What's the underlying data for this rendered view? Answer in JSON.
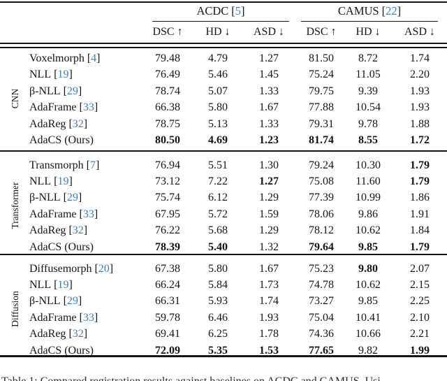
{
  "colors": {
    "text": "#141414",
    "cite_blue": "#3d7dc4",
    "background": "#ffffff"
  },
  "brackets": {
    "open": "[",
    "close": "]"
  },
  "table": {
    "dataset_headers": [
      {
        "label": "ACDC",
        "cite": "5"
      },
      {
        "label": "CAMUS",
        "cite": "22"
      }
    ],
    "metric_headers": [
      {
        "label": "DSC",
        "arrow": "↑"
      },
      {
        "label": "HD",
        "arrow": "↓"
      },
      {
        "label": "ASD",
        "arrow": "↓"
      },
      {
        "label": "DSC",
        "arrow": "↑"
      },
      {
        "label": "HD",
        "arrow": "↓"
      },
      {
        "label": "ASD",
        "arrow": "↓"
      }
    ],
    "groups": [
      {
        "name": "CNN",
        "rows": [
          {
            "method": "Voxelmorph",
            "cite": "4",
            "values": [
              "79.48",
              "4.79",
              "1.27",
              "81.50",
              "8.72",
              "1.74"
            ],
            "bold": [
              0,
              0,
              0,
              0,
              0,
              0
            ]
          },
          {
            "method": "NLL",
            "cite": "19",
            "values": [
              "76.49",
              "5.46",
              "1.45",
              "75.24",
              "11.05",
              "2.20"
            ],
            "bold": [
              0,
              0,
              0,
              0,
              0,
              0
            ]
          },
          {
            "method": "β-NLL",
            "cite": "29",
            "values": [
              "78.74",
              "5.07",
              "1.33",
              "79.75",
              "9.39",
              "1.93"
            ],
            "bold": [
              0,
              0,
              0,
              0,
              0,
              0
            ]
          },
          {
            "method": "AdaFrame",
            "cite": "33",
            "values": [
              "66.38",
              "5.80",
              "1.67",
              "77.88",
              "10.54",
              "1.93"
            ],
            "bold": [
              0,
              0,
              0,
              0,
              0,
              0
            ]
          },
          {
            "method": "AdaReg",
            "cite": "32",
            "values": [
              "78.75",
              "5.13",
              "1.33",
              "79.31",
              "9.78",
              "1.88"
            ],
            "bold": [
              0,
              0,
              0,
              0,
              0,
              0
            ]
          },
          {
            "method": "AdaCS (Ours)",
            "cite": "",
            "values": [
              "80.50",
              "4.69",
              "1.23",
              "81.74",
              "8.55",
              "1.72"
            ],
            "bold": [
              1,
              1,
              1,
              1,
              1,
              1
            ]
          }
        ]
      },
      {
        "name": "Transformer",
        "rows": [
          {
            "method": "Transmorph",
            "cite": "7",
            "values": [
              "76.94",
              "5.51",
              "1.30",
              "79.24",
              "10.30",
              "1.79"
            ],
            "bold": [
              0,
              0,
              0,
              0,
              0,
              1
            ]
          },
          {
            "method": "NLL",
            "cite": "19",
            "values": [
              "73.12",
              "7.22",
              "1.27",
              "75.08",
              "11.60",
              "1.79"
            ],
            "bold": [
              0,
              0,
              1,
              0,
              0,
              1
            ]
          },
          {
            "method": "β-NLL",
            "cite": "29",
            "values": [
              "75.74",
              "6.12",
              "1.29",
              "77.39",
              "10.99",
              "1.86"
            ],
            "bold": [
              0,
              0,
              0,
              0,
              0,
              0
            ]
          },
          {
            "method": "AdaFrame",
            "cite": "33",
            "values": [
              "67.95",
              "5.72",
              "1.59",
              "78.06",
              "9.86",
              "1.91"
            ],
            "bold": [
              0,
              0,
              0,
              0,
              0,
              0
            ]
          },
          {
            "method": "AdaReg",
            "cite": "32",
            "values": [
              "76.22",
              "5.68",
              "1.29",
              "78.12",
              "10.62",
              "1.84"
            ],
            "bold": [
              0,
              0,
              0,
              0,
              0,
              0
            ]
          },
          {
            "method": "AdaCS (Ours)",
            "cite": "",
            "values": [
              "78.39",
              "5.40",
              "1.32",
              "79.64",
              "9.85",
              "1.79"
            ],
            "bold": [
              1,
              1,
              0,
              1,
              1,
              1
            ]
          }
        ]
      },
      {
        "name": "Diffusion",
        "rows": [
          {
            "method": "Diffusemorph",
            "cite": "20",
            "values": [
              "67.38",
              "5.80",
              "1.67",
              "75.23",
              "9.80",
              "2.07"
            ],
            "bold": [
              0,
              0,
              0,
              0,
              1,
              0
            ]
          },
          {
            "method": "NLL",
            "cite": "19",
            "values": [
              "66.24",
              "5.84",
              "1.73",
              "74.78",
              "10.62",
              "2.15"
            ],
            "bold": [
              0,
              0,
              0,
              0,
              0,
              0
            ]
          },
          {
            "method": "β-NLL",
            "cite": "29",
            "values": [
              "66.31",
              "5.93",
              "1.74",
              "73.27",
              "9.85",
              "2.25"
            ],
            "bold": [
              0,
              0,
              0,
              0,
              0,
              0
            ]
          },
          {
            "method": "AdaFrame",
            "cite": "33",
            "values": [
              "59.78",
              "6.46",
              "1.93",
              "75.04",
              "10.41",
              "2.10"
            ],
            "bold": [
              0,
              0,
              0,
              0,
              0,
              0
            ]
          },
          {
            "method": "AdaReg",
            "cite": "32",
            "values": [
              "69.41",
              "6.25",
              "1.78",
              "74.36",
              "10.66",
              "2.21"
            ],
            "bold": [
              0,
              0,
              0,
              0,
              0,
              0
            ]
          },
          {
            "method": "AdaCS (Ours)",
            "cite": "",
            "values": [
              "72.09",
              "5.35",
              "1.53",
              "77.65",
              "9.82",
              "1.99"
            ],
            "bold": [
              1,
              1,
              1,
              1,
              0,
              1
            ]
          }
        ]
      }
    ]
  },
  "caption": "Table 1: Compared registration results against baselines on ACDC and CAMUS. Usi"
}
